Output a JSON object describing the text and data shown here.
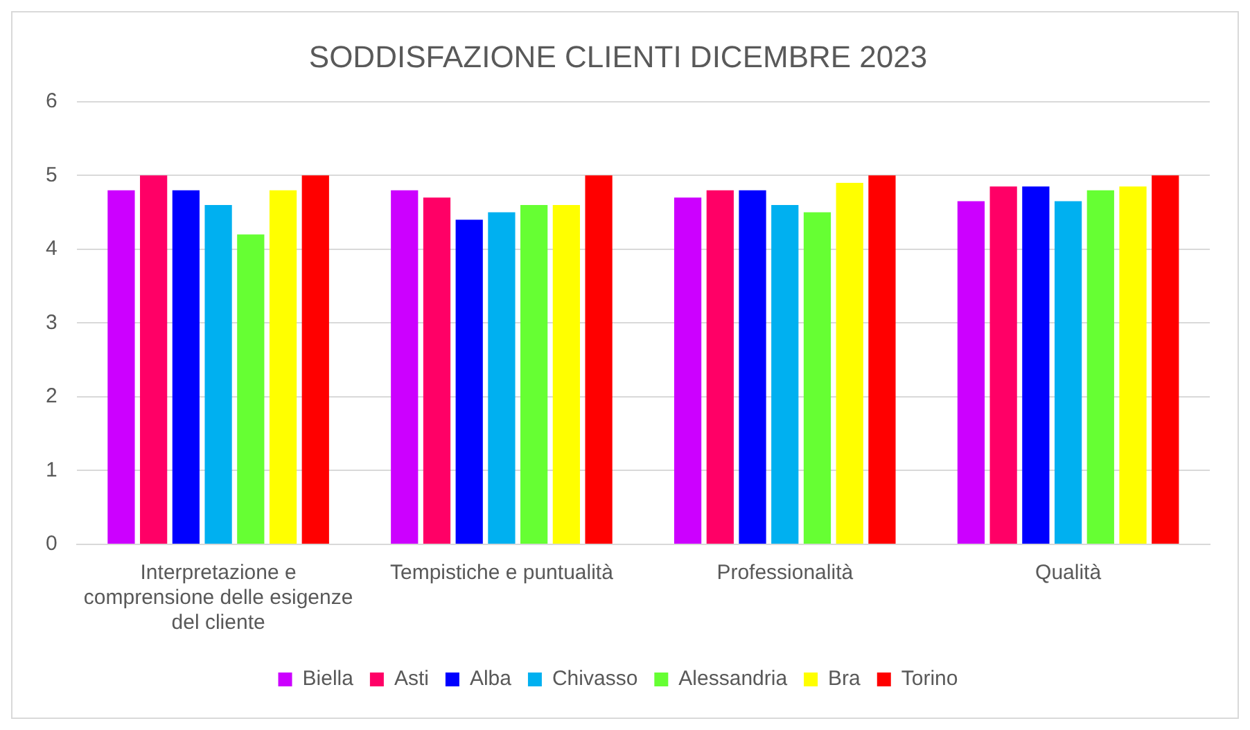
{
  "chart_data": {
    "type": "bar",
    "title": "SODDISFAZIONE CLIENTI DICEMBRE 2023",
    "categories": [
      "Interpretazione e comprensione delle esigenze del cliente",
      "Tempistiche e puntualità",
      "Professionalità",
      "Qualità"
    ],
    "series": [
      {
        "name": "Biella",
        "color": "#cc00ff",
        "values": [
          4.8,
          4.8,
          4.7,
          4.65
        ]
      },
      {
        "name": "Asti",
        "color": "#ff0066",
        "values": [
          5,
          4.7,
          4.8,
          4.85
        ]
      },
      {
        "name": "Alba",
        "color": "#0000ff",
        "values": [
          4.8,
          4.4,
          4.8,
          4.85
        ]
      },
      {
        "name": "Chivasso",
        "color": "#00b0f0",
        "values": [
          4.6,
          4.5,
          4.6,
          4.65
        ]
      },
      {
        "name": "Alessandria",
        "color": "#66ff33",
        "values": [
          4.2,
          4.6,
          4.5,
          4.8
        ]
      },
      {
        "name": "Bra",
        "color": "#ffff00",
        "values": [
          4.8,
          4.6,
          4.9,
          4.85
        ]
      },
      {
        "name": "Torino",
        "color": "#ff0000",
        "values": [
          5,
          5,
          5,
          5
        ]
      }
    ],
    "ylim": [
      0,
      6
    ],
    "yticks": [
      0,
      1,
      2,
      3,
      4,
      5,
      6
    ],
    "grid": "y",
    "legend": "bottom"
  }
}
